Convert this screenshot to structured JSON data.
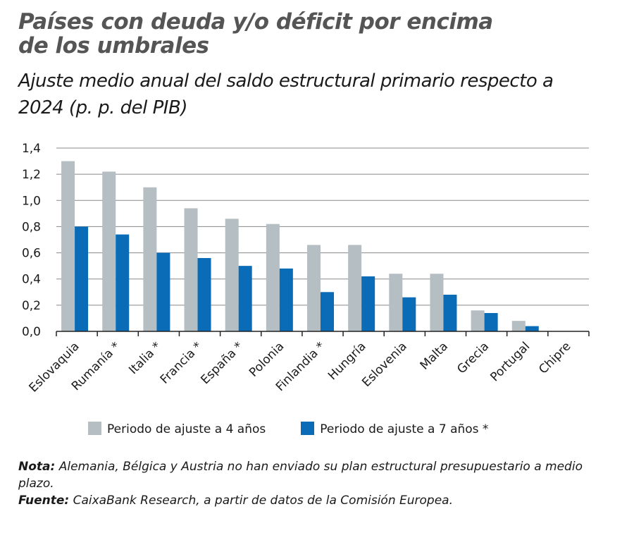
{
  "title": "Países con deuda y/o déficit por encima de los umbrales",
  "subtitle": "Ajuste medio anual del saldo estructural primario respecto a 2024 (p. p. del PIB)",
  "colors": {
    "gray": "#b4bec3",
    "blue": "#0a6cb6"
  },
  "chart_data": {
    "type": "bar",
    "categories": [
      "Eslovaquia",
      "Rumanía *",
      "Italia *",
      "Francia *",
      "España *",
      "Polonia",
      "Finlandia *",
      "Hungría",
      "Eslovenia",
      "Malta",
      "Grecia",
      "Portugal",
      "Chipre"
    ],
    "series": [
      {
        "name": "Periodo de ajuste a 4 años",
        "color": "#b4bec3",
        "values": [
          1.3,
          1.22,
          1.1,
          0.94,
          0.86,
          0.82,
          0.66,
          0.66,
          0.44,
          0.44,
          0.16,
          0.08,
          0
        ]
      },
      {
        "name": "Periodo de ajuste a 7 años *",
        "color": "#0a6cb6",
        "values": [
          0.8,
          0.74,
          0.6,
          0.56,
          0.5,
          0.48,
          0.3,
          0.42,
          0.26,
          0.28,
          0.14,
          0.04,
          0
        ]
      }
    ],
    "ylim": [
      0,
      1.4
    ],
    "yticks": [
      "0,0",
      "0,2",
      "0,4",
      "0,6",
      "0,8",
      "1,0",
      "1,2",
      "1,4"
    ],
    "grid": true,
    "legend": "bottom"
  },
  "notes": {
    "nota_label": "Nota:",
    "nota_text": " Alemania, Bélgica y Austria no han enviado su plan estructural presupuestario a medio plazo.",
    "fuente_label": "Fuente:",
    "fuente_text": " CaixaBank Research, a partir de datos de la Comisión Europea."
  }
}
